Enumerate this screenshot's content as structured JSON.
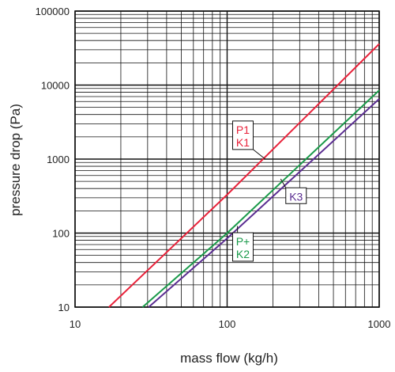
{
  "chart_data": {
    "type": "line",
    "xscale": "log",
    "yscale": "log",
    "xlabel": "mass flow (kg/h)",
    "ylabel": "pressure drop (Pa)",
    "xlim": [
      10,
      1000
    ],
    "ylim": [
      10,
      100000
    ],
    "x_ticks": [
      "10",
      "100",
      "1000"
    ],
    "y_ticks": [
      "10",
      "100",
      "1000",
      "10000",
      "100000"
    ],
    "grid": true,
    "series": [
      {
        "name_lines": [
          "P1",
          "K1"
        ],
        "color": "#e8223a",
        "x": [
          16.7,
          100,
          1000
        ],
        "y": [
          10,
          330,
          36000
        ]
      },
      {
        "name_lines": [
          "P+",
          "K2"
        ],
        "color": "#1a9a4a",
        "x": [
          27.8,
          100,
          1000
        ],
        "y": [
          10,
          100,
          8500
        ]
      },
      {
        "name_lines": [
          "K3"
        ],
        "color": "#5a2d91",
        "x": [
          30.5,
          100,
          1000
        ],
        "y": [
          10,
          85,
          6500
        ]
      }
    ],
    "annotations": [
      {
        "series": 0,
        "lines": [
          "P1",
          "K1"
        ],
        "label_at": [
          127,
          2100
        ],
        "pointer_to": [
          178,
          1000
        ]
      },
      {
        "series": 1,
        "lines": [
          "P+",
          "K2"
        ],
        "label_at": [
          127,
          65
        ],
        "pointer_to": [
          117,
          125
        ]
      },
      {
        "series": 2,
        "lines": [
          "K3"
        ],
        "label_at": [
          284,
          320
        ],
        "pointer_to": [
          225,
          540
        ]
      }
    ]
  }
}
